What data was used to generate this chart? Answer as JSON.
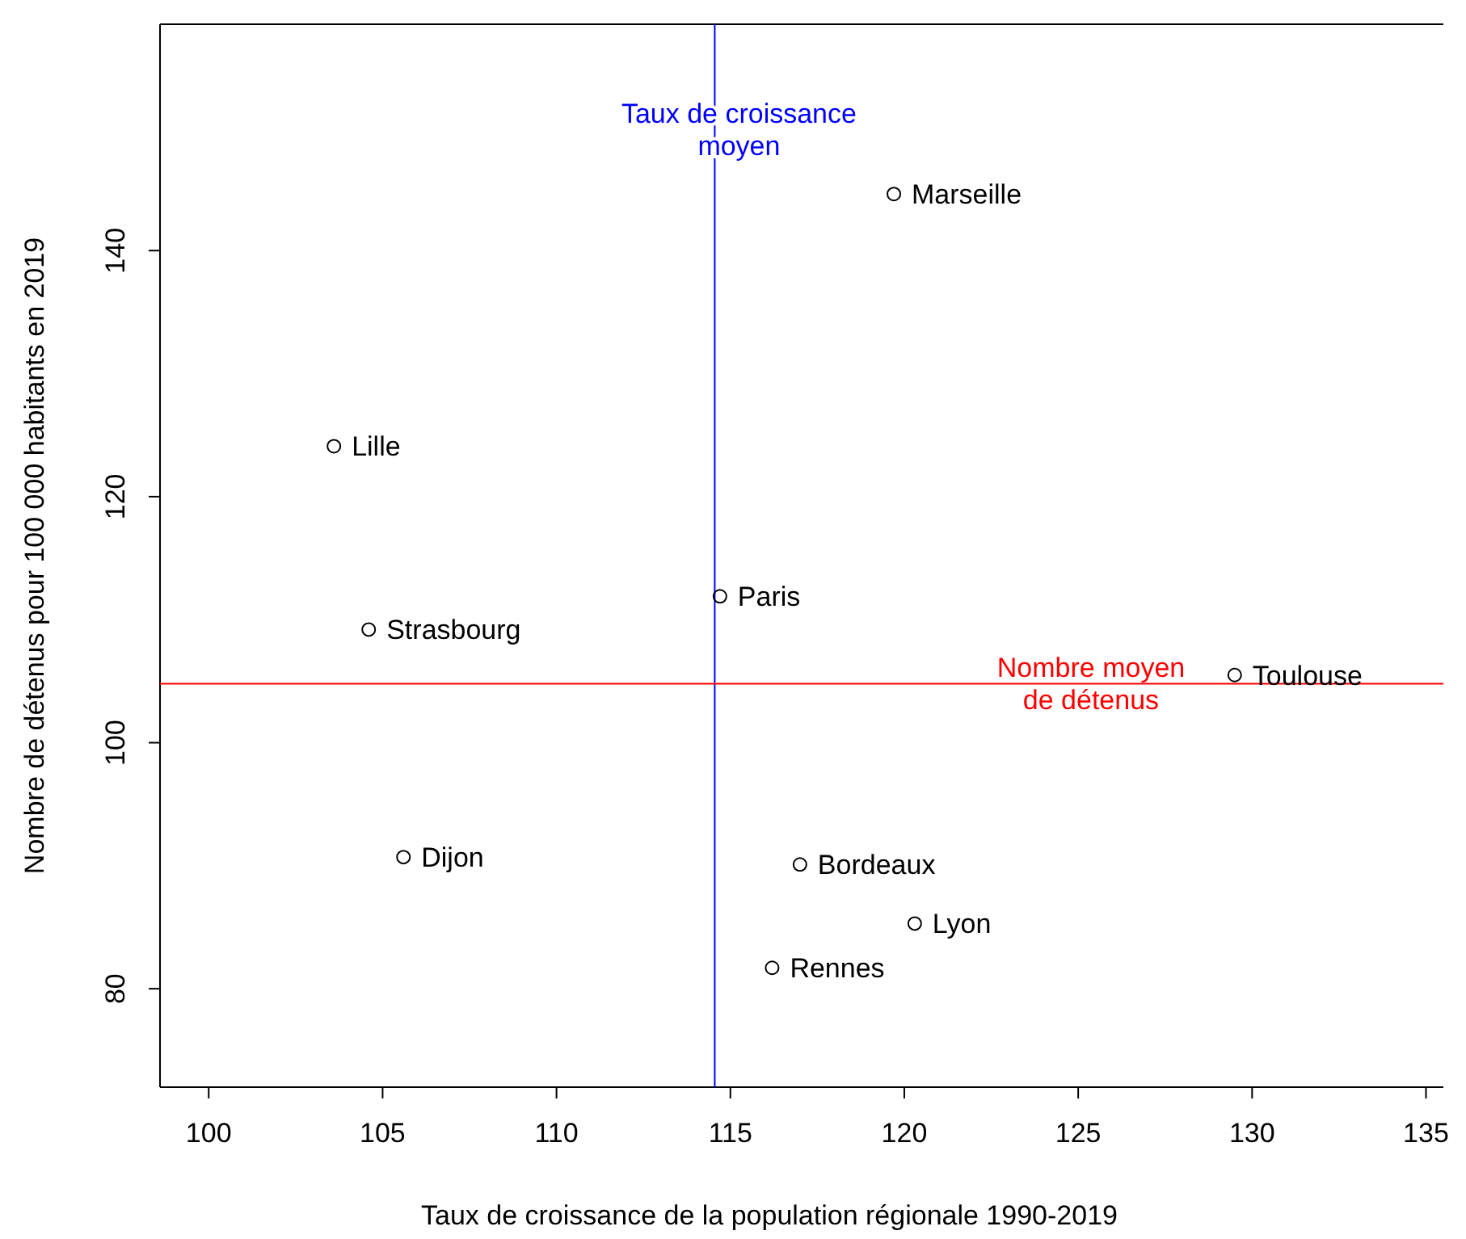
{
  "chart_data": {
    "type": "scatter",
    "xlabel": "Taux de croissance de la population régionale 1990-2019",
    "ylabel": "Nombre de détenus pour 100 000 habitants en 2019",
    "x": [
      119.7,
      103.6,
      104.6,
      114.7,
      129.5,
      105.6,
      117.0,
      120.3,
      116.2
    ],
    "series": [
      {
        "color": "#000000",
        "values": [
          144.6,
          124.1,
          109.2,
          111.9,
          105.5,
          90.7,
          90.1,
          85.3,
          81.7
        ]
      }
    ],
    "marker": "circle",
    "grid": false,
    "xlim": [
      98.6,
      135.5
    ],
    "ylim": [
      72,
      158.4
    ],
    "xticks": [
      100,
      105,
      110,
      115,
      120,
      125,
      130,
      135
    ],
    "yticks": [
      80,
      100,
      120,
      140
    ],
    "ref_lines": [
      {
        "axis": "x",
        "value": 114.55,
        "label": "Taux de croissance\nmoyen",
        "color": "#0000ff"
      },
      {
        "axis": "y",
        "value": 104.8,
        "label": "Nombre moyen\nde détenus",
        "color": "#ff0000"
      }
    ],
    "annotations": [
      {
        "text": "Marseille",
        "x": 119.7,
        "y": 144.6
      },
      {
        "text": "Lille",
        "x": 103.6,
        "y": 124.1
      },
      {
        "text": "Strasbourg",
        "x": 104.6,
        "y": 109.2
      },
      {
        "text": "Paris",
        "x": 114.7,
        "y": 111.9
      },
      {
        "text": "Toulouse",
        "x": 129.5,
        "y": 105.5
      },
      {
        "text": "Dijon",
        "x": 105.6,
        "y": 90.7
      },
      {
        "text": "Bordeaux",
        "x": 117.0,
        "y": 90.1
      },
      {
        "text": "Lyon",
        "x": 120.3,
        "y": 85.3
      },
      {
        "text": "Rennes",
        "x": 116.2,
        "y": 81.7
      }
    ]
  }
}
